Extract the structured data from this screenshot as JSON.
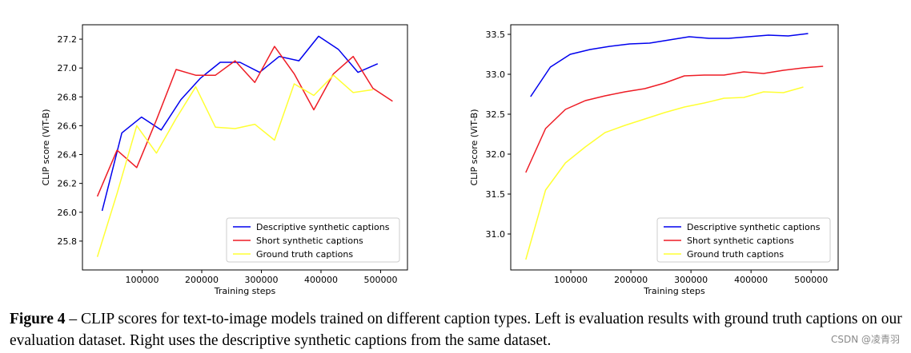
{
  "chart_data": [
    {
      "type": "line",
      "title": "",
      "xlabel": "Training steps",
      "ylabel": "CLIP score (ViT-B)",
      "xlim": [
        0,
        545000
      ],
      "ylim": [
        25.6,
        27.3
      ],
      "xticks": [
        100000,
        200000,
        300000,
        400000,
        500000
      ],
      "xtick_labels": [
        "100000",
        "200000",
        "300000",
        "400000",
        "500000"
      ],
      "yticks": [
        25.8,
        26.0,
        26.2,
        26.4,
        26.6,
        26.8,
        27.0,
        27.2
      ],
      "ytick_labels": [
        "25.8",
        "26.0",
        "26.2",
        "26.4",
        "26.6",
        "26.8",
        "27.0",
        "27.2"
      ],
      "grid": false,
      "legend": "lower right",
      "series": [
        {
          "name": "Descriptive synthetic captions",
          "color": "#0000ee",
          "x": [
            33000,
            66000,
            99000,
            132000,
            165000,
            198000,
            231000,
            264000,
            297000,
            330000,
            363000,
            396000,
            429000,
            462000,
            495000
          ],
          "y": [
            26.01,
            26.55,
            26.66,
            26.57,
            26.78,
            26.93,
            27.04,
            27.04,
            26.97,
            27.08,
            27.05,
            27.22,
            27.13,
            26.97,
            27.03
          ]
        },
        {
          "name": "Short synthetic captions",
          "color": "#ee1c25",
          "x": [
            25000,
            58000,
            91000,
            124000,
            157000,
            190000,
            223000,
            256000,
            289000,
            322000,
            355000,
            388000,
            421000,
            454000,
            487000,
            520000
          ],
          "y": [
            26.11,
            26.43,
            26.31,
            26.64,
            26.99,
            26.95,
            26.95,
            27.05,
            26.9,
            27.15,
            26.96,
            26.71,
            26.96,
            27.08,
            26.86,
            26.77
          ]
        },
        {
          "name": "Ground truth captions",
          "color": "#ffff33",
          "x": [
            25000,
            58000,
            91000,
            124000,
            157000,
            190000,
            223000,
            256000,
            289000,
            322000,
            355000,
            388000,
            421000,
            454000,
            487000
          ],
          "y": [
            25.69,
            26.13,
            26.6,
            26.41,
            26.65,
            26.87,
            26.59,
            26.58,
            26.61,
            26.5,
            26.89,
            26.81,
            26.95,
            26.83,
            26.85
          ]
        }
      ]
    },
    {
      "type": "line",
      "title": "",
      "xlabel": "Training steps",
      "ylabel": "CLIP score (ViT-B)",
      "xlim": [
        0,
        545000
      ],
      "ylim": [
        30.55,
        33.62
      ],
      "xticks": [
        100000,
        200000,
        300000,
        400000,
        500000
      ],
      "xtick_labels": [
        "100000",
        "200000",
        "300000",
        "400000",
        "500000"
      ],
      "yticks": [
        31.0,
        31.5,
        32.0,
        32.5,
        33.0,
        33.5
      ],
      "ytick_labels": [
        "31.0",
        "31.5",
        "32.0",
        "32.5",
        "33.0",
        "33.5"
      ],
      "grid": false,
      "legend": "lower right",
      "series": [
        {
          "name": "Descriptive synthetic captions",
          "color": "#0000ee",
          "x": [
            33000,
            66000,
            99000,
            132000,
            165000,
            198000,
            231000,
            264000,
            297000,
            330000,
            363000,
            396000,
            429000,
            462000,
            495000
          ],
          "y": [
            32.72,
            33.09,
            33.25,
            33.31,
            33.35,
            33.38,
            33.39,
            33.43,
            33.47,
            33.45,
            33.45,
            33.47,
            33.49,
            33.48,
            33.51
          ]
        },
        {
          "name": "Short synthetic captions",
          "color": "#ee1c25",
          "x": [
            25000,
            58000,
            91000,
            124000,
            157000,
            190000,
            223000,
            256000,
            289000,
            322000,
            355000,
            388000,
            421000,
            454000,
            487000,
            520000
          ],
          "y": [
            31.77,
            32.32,
            32.56,
            32.67,
            32.73,
            32.78,
            32.82,
            32.89,
            32.98,
            32.99,
            32.99,
            33.03,
            33.01,
            33.05,
            33.08,
            33.1
          ]
        },
        {
          "name": "Ground truth captions",
          "color": "#ffff33",
          "x": [
            25000,
            58000,
            91000,
            124000,
            157000,
            190000,
            223000,
            256000,
            289000,
            322000,
            355000,
            388000,
            421000,
            454000,
            487000
          ],
          "y": [
            30.68,
            31.55,
            31.89,
            32.09,
            32.27,
            32.36,
            32.44,
            32.52,
            32.59,
            32.64,
            32.7,
            32.71,
            32.78,
            32.77,
            32.84
          ]
        }
      ]
    }
  ],
  "caption": {
    "label": "Figure 4",
    "dash": " – ",
    "text": "CLIP scores for text-to-image models trained on different caption types. Left is evaluation results with ground truth captions on our evaluation dataset. Right uses the descriptive synthetic captions from the same dataset."
  },
  "watermark": "CSDN @凌青羽"
}
